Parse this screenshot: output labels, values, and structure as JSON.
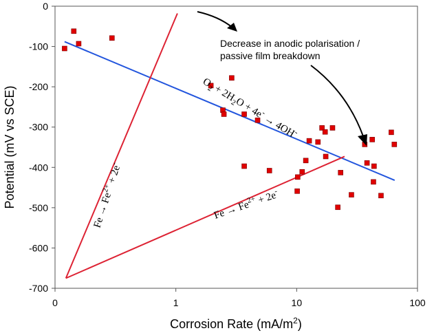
{
  "chart_data": {
    "type": "scatter",
    "xlabel": "Corrosion Rate (mA/m",
    "xlabel_sup": "2",
    "xlabel_end": ")",
    "ylabel": "Potential (mV vs SCE)",
    "x_scale": "log",
    "xlim": [
      0.1,
      100
    ],
    "ylim": [
      -700,
      0
    ],
    "x_ticks": [
      0.1,
      1,
      10,
      100
    ],
    "x_tick_labels": [
      "0",
      "1",
      "10",
      "100"
    ],
    "y_ticks": [
      0,
      -100,
      -200,
      -300,
      -400,
      -500,
      -600,
      -700
    ],
    "y_tick_labels": [
      "0",
      "-100",
      "-200",
      "-300",
      "-400",
      "-500",
      "-600",
      "-700"
    ],
    "grid": false,
    "points": [
      {
        "x": 0.12,
        "y": -105
      },
      {
        "x": 0.143,
        "y": -62
      },
      {
        "x": 0.157,
        "y": -93
      },
      {
        "x": 0.296,
        "y": -79
      },
      {
        "x": 1.95,
        "y": -197
      },
      {
        "x": 2.45,
        "y": -258
      },
      {
        "x": 2.5,
        "y": -268
      },
      {
        "x": 2.9,
        "y": -178
      },
      {
        "x": 3.68,
        "y": -268
      },
      {
        "x": 3.68,
        "y": -397
      },
      {
        "x": 4.75,
        "y": -283
      },
      {
        "x": 5.95,
        "y": -408
      },
      {
        "x": 10.2,
        "y": -424
      },
      {
        "x": 10.1,
        "y": -459
      },
      {
        "x": 11.1,
        "y": -411
      },
      {
        "x": 11.9,
        "y": -383
      },
      {
        "x": 12.7,
        "y": -334
      },
      {
        "x": 15.0,
        "y": -337
      },
      {
        "x": 16.2,
        "y": -302
      },
      {
        "x": 17.2,
        "y": -312
      },
      {
        "x": 17.4,
        "y": -373
      },
      {
        "x": 19.8,
        "y": -302
      },
      {
        "x": 21.9,
        "y": -499
      },
      {
        "x": 23.1,
        "y": -413
      },
      {
        "x": 28.4,
        "y": -468
      },
      {
        "x": 36.6,
        "y": -343
      },
      {
        "x": 38.2,
        "y": -389
      },
      {
        "x": 42.2,
        "y": -331
      },
      {
        "x": 43.2,
        "y": -436
      },
      {
        "x": 43.7,
        "y": -397
      },
      {
        "x": 49.9,
        "y": -470
      },
      {
        "x": 60.7,
        "y": -313
      },
      {
        "x": 64.3,
        "y": -343
      }
    ],
    "lines": [
      {
        "name": "O2 + 2H2O + 4e- -> 4OH-",
        "color": "#2255dd",
        "from": {
          "x": 0.12,
          "y": -88
        },
        "to": {
          "x": 64.7,
          "y": -432
        }
      },
      {
        "name": "Fe -> Fe2+ + 2e- (anodic)",
        "color": "#dd2233",
        "from": {
          "x": 0.123,
          "y": -675
        },
        "to": {
          "x": 1.03,
          "y": -18
        }
      },
      {
        "name": "Fe -> Fe2+ + 2e- (cathodic)",
        "color": "#dd2233",
        "from": {
          "x": 0.123,
          "y": -675
        },
        "to": {
          "x": 24.9,
          "y": -373
        }
      }
    ],
    "point_color": "#e00000"
  },
  "annotations": {
    "note_line1": "Decrease in anodic polarisation /",
    "note_line2": "passive film breakdown",
    "oxygen_eq": {
      "a": "O",
      "b": "2",
      "c": " + 2H",
      "d": "2",
      "e": "O + 4e",
      "f": "-",
      "g": " → 4OH",
      "h": "-"
    },
    "fe_eq": {
      "a": "Fe → Fe",
      "b": "2+",
      "c": " + 2e",
      "d": "-"
    }
  }
}
